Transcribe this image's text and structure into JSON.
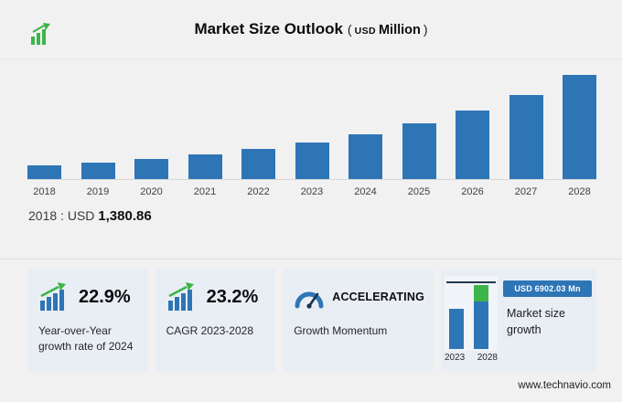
{
  "header": {
    "title": "Market Size Outlook",
    "unit": {
      "open": "(",
      "currency": "USD",
      "text": "Million",
      "close": ")"
    }
  },
  "chart_data": {
    "type": "bar",
    "title": "Market Size Outlook (USD Million)",
    "categories": [
      "2018",
      "2019",
      "2020",
      "2021",
      "2022",
      "2023",
      "2024",
      "2025",
      "2026",
      "2027",
      "2028"
    ],
    "values": [
      1380.86,
      1686.7,
      2060.3,
      2516.7,
      3074.1,
      3754.96,
      4614.85,
      5688.6,
      7012.2,
      8643.9,
      10656.99
    ],
    "bar_color": "#2e75b6",
    "xlabel": "",
    "ylabel": "USD Million",
    "ylim": [
      0,
      11000
    ],
    "grid": false,
    "legend": "none"
  },
  "callout": {
    "year": "2018",
    "separator": ":",
    "currency": "USD",
    "value": "1,380.86"
  },
  "cards": [
    {
      "value": "22.9%",
      "label_line1": "Year-over-Year",
      "label_line2": "growth rate of 2024"
    },
    {
      "value": "23.2%",
      "label": "CAGR 2023-2028"
    },
    {
      "value": "ACCELERATING",
      "label": "Growth Momentum"
    },
    {
      "badge": "USD 6902.03 Mn",
      "label_line1": "Market size",
      "label_line2": "growth",
      "years": [
        "2023",
        "2028"
      ]
    }
  ],
  "footer": {
    "url": "www.technavio.com"
  },
  "colors": {
    "bar_blue": "#2e75b6",
    "growth_green": "#3cb54a",
    "card_background": "#e9eef5",
    "badge_blue": "#2e75b6",
    "page_background": "#f1f1f2"
  }
}
